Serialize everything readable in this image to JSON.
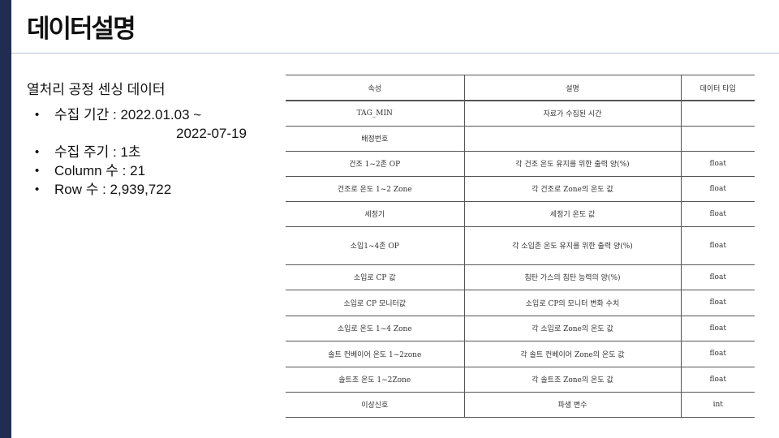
{
  "slide": {
    "title": "데이터설명",
    "colors": {
      "sidebar": "#1f2d52",
      "divider": "#b9c5d1"
    }
  },
  "left": {
    "heading": "열처리 공정 센싱 데이터",
    "bullets": [
      {
        "line1": "수집 기간 : 2022.01.03 ~",
        "line2": "2022-07-19"
      },
      {
        "line1": "수집 주기 : 1초"
      },
      {
        "line1": "Column 수 : 21"
      },
      {
        "line1": "Row 수 : 2,939,722"
      }
    ]
  },
  "table": {
    "headers": [
      "속성",
      "설명",
      "데이터 타입"
    ],
    "rows": [
      [
        "TAG_MIN",
        "자료가 수집된 시간",
        ""
      ],
      [
        "배정번호",
        "",
        ""
      ],
      [
        "건조 1~2존 OP",
        "각 건조 온도 유지를 위한 출력 양(%)",
        "float"
      ],
      [
        "건조로 온도 1~2 Zone",
        "각 건조로 Zone의 온도 값",
        "float"
      ],
      [
        "세정기",
        "세정기 온도 값",
        "float"
      ],
      [
        "소입1~4존 OP",
        "각 소입존 온도 유지를 위한 출력 양(%)",
        "float"
      ],
      [
        "소입로 CP 값",
        "침탄 가스의 침탄 능력의 양(%)",
        "float"
      ],
      [
        "소입로 CP 모니터값",
        "소입로 CP의 모니터 변화 수치",
        "float"
      ],
      [
        "소입로 온도 1~4 Zone",
        "각 소입로 Zone의 온도 값",
        "float"
      ],
      [
        "솔트 컨베이어 온도 1~2zone",
        "각 솔트 컨베이어 Zone의 온도 값",
        "float"
      ],
      [
        "솔트조 온도 1~2Zone",
        "각 솔트조 Zone의 온도 값",
        "float"
      ],
      [
        "이상신호",
        "파생 변수",
        "int"
      ]
    ]
  }
}
